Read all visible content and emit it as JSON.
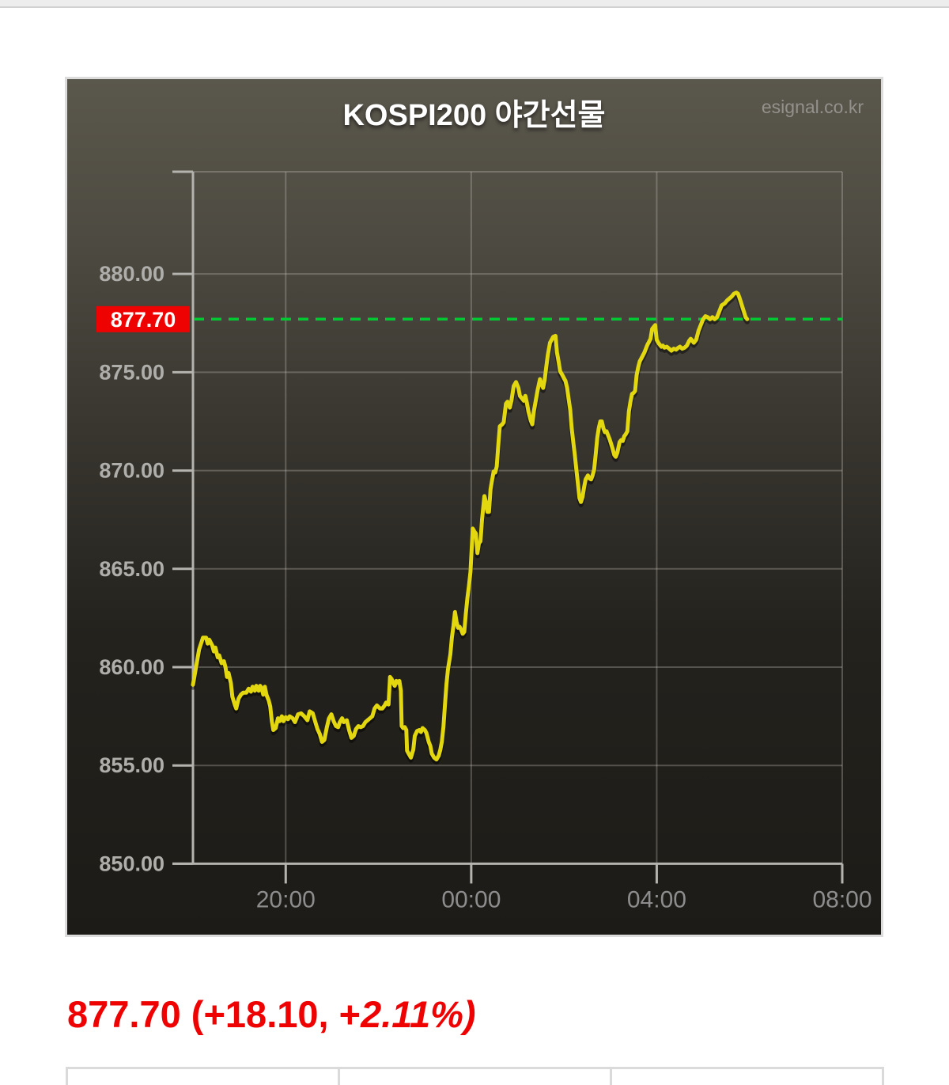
{
  "header": {
    "title": "KOSPI200 야간선물",
    "watermark": "esignal.co.kr"
  },
  "summary": {
    "full_text": "877.70 (+18.10, +2.11%)",
    "text_normal": "877.70 (+18.10, +",
    "text_italic": "2.11%)",
    "price": "877.70",
    "change": "+18.10",
    "change_percent": "+2.11%",
    "color": "#ee0202"
  },
  "chart_data": {
    "type": "line",
    "title": "KOSPI200 야간선물",
    "grid": true,
    "legend": false,
    "x_axis": {
      "unit": "time",
      "start": "18:00",
      "end": "08:00",
      "span_hours": 14,
      "ticks": [
        {
          "hours_from_start": 2,
          "label": "20:00"
        },
        {
          "hours_from_start": 6,
          "label": "00:00"
        },
        {
          "hours_from_start": 10,
          "label": "04:00"
        },
        {
          "hours_from_start": 14,
          "label": "08:00"
        }
      ]
    },
    "y_axis": {
      "min": 850,
      "max": 885.2,
      "ticks": [
        {
          "value": 880,
          "label": "880.00"
        },
        {
          "value": 875,
          "label": "875.00"
        },
        {
          "value": 870,
          "label": "870.00"
        },
        {
          "value": 865,
          "label": "865.00"
        },
        {
          "value": 860,
          "label": "860.00"
        },
        {
          "value": 855,
          "label": "855.00"
        },
        {
          "value": 850,
          "label": "850.00"
        }
      ]
    },
    "reference_line": {
      "value": 877.7,
      "label": "877.70",
      "line_color": "#00ca32",
      "badge_color": "#ee0202",
      "badge_text_color": "#ffffff",
      "style": "dashed"
    },
    "colors": {
      "series": "#e3d70f",
      "grid": "rgba(205,203,196,0.30)",
      "axis": "#b5b3ae",
      "y_label": "#b0aeab",
      "x_label": "#8d8d8d"
    },
    "series": [
      {
        "name": "KOSPI200 야간선물",
        "color": "#e3d70f",
        "points_minutes_value": [
          [
            0,
            859.1
          ],
          [
            4,
            860.0
          ],
          [
            8,
            860.9
          ],
          [
            13,
            861.5
          ],
          [
            17,
            861.5
          ],
          [
            19,
            861.2
          ],
          [
            21,
            861.4
          ],
          [
            25,
            861.1
          ],
          [
            27,
            860.8
          ],
          [
            29,
            861.0
          ],
          [
            32,
            860.5
          ],
          [
            34,
            860.6
          ],
          [
            37,
            860.2
          ],
          [
            40,
            860.3
          ],
          [
            42,
            860.0
          ],
          [
            44,
            859.5
          ],
          [
            46,
            859.7
          ],
          [
            49,
            859.2
          ],
          [
            51,
            858.5
          ],
          [
            54,
            858.1
          ],
          [
            56,
            857.9
          ],
          [
            59,
            858.4
          ],
          [
            62,
            858.6
          ],
          [
            65,
            858.7
          ],
          [
            69,
            858.7
          ],
          [
            72,
            858.9
          ],
          [
            75,
            858.75
          ],
          [
            77,
            859.0
          ],
          [
            80,
            858.8
          ],
          [
            82,
            859.05
          ],
          [
            85,
            858.8
          ],
          [
            87,
            859.05
          ],
          [
            89,
            858.9
          ],
          [
            91,
            858.6
          ],
          [
            93,
            859.0
          ],
          [
            95,
            858.6
          ],
          [
            98,
            858.3
          ],
          [
            100,
            858.0
          ],
          [
            102,
            857.25
          ],
          [
            104,
            856.8
          ],
          [
            107,
            856.9
          ],
          [
            110,
            857.4
          ],
          [
            112,
            857.25
          ],
          [
            115,
            857.5
          ],
          [
            117,
            857.25
          ],
          [
            120,
            857.45
          ],
          [
            123,
            857.35
          ],
          [
            125,
            857.5
          ],
          [
            129,
            857.4
          ],
          [
            132,
            857.2
          ],
          [
            136,
            857.6
          ],
          [
            140,
            857.65
          ],
          [
            144,
            857.5
          ],
          [
            148,
            857.3
          ],
          [
            151,
            857.75
          ],
          [
            155,
            857.65
          ],
          [
            158,
            857.25
          ],
          [
            161,
            856.85
          ],
          [
            164,
            856.6
          ],
          [
            167,
            856.2
          ],
          [
            170,
            856.3
          ],
          [
            173,
            856.9
          ],
          [
            176,
            857.4
          ],
          [
            179,
            857.6
          ],
          [
            182,
            857.25
          ],
          [
            185,
            857.0
          ],
          [
            188,
            856.95
          ],
          [
            190,
            857.2
          ],
          [
            193,
            857.4
          ],
          [
            195,
            857.2
          ],
          [
            199,
            857.3
          ],
          [
            202,
            856.8
          ],
          [
            205,
            856.4
          ],
          [
            208,
            856.5
          ],
          [
            211,
            856.85
          ],
          [
            214,
            857.0
          ],
          [
            217,
            856.95
          ],
          [
            220,
            857.0
          ],
          [
            223,
            857.2
          ],
          [
            226,
            857.3
          ],
          [
            229,
            857.4
          ],
          [
            232,
            857.5
          ],
          [
            235,
            857.9
          ],
          [
            238,
            858.05
          ],
          [
            242,
            857.9
          ],
          [
            245,
            857.9
          ],
          [
            248,
            858.05
          ],
          [
            250,
            858.2
          ],
          [
            253,
            858.1
          ],
          [
            255,
            859.5
          ],
          [
            257,
            859.4
          ],
          [
            259,
            859.2
          ],
          [
            261,
            859.05
          ],
          [
            263,
            859.3
          ],
          [
            265,
            859.2
          ],
          [
            267,
            859.3
          ],
          [
            269,
            858.8
          ],
          [
            270,
            857.0
          ],
          [
            272,
            856.9
          ],
          [
            274,
            856.95
          ],
          [
            276,
            856.8
          ],
          [
            277,
            855.75
          ],
          [
            279,
            855.6
          ],
          [
            282,
            855.4
          ],
          [
            285,
            855.8
          ],
          [
            287,
            856.5
          ],
          [
            290,
            856.75
          ],
          [
            293,
            856.8
          ],
          [
            295,
            856.7
          ],
          [
            297,
            856.9
          ],
          [
            300,
            856.8
          ],
          [
            302,
            856.65
          ],
          [
            305,
            856.2
          ],
          [
            307,
            856.0
          ],
          [
            309,
            855.6
          ],
          [
            312,
            855.4
          ],
          [
            315,
            855.3
          ],
          [
            318,
            855.5
          ],
          [
            320,
            855.8
          ],
          [
            322,
            856.2
          ],
          [
            324,
            856.95
          ],
          [
            326,
            858.05
          ],
          [
            328,
            859.15
          ],
          [
            330,
            859.9
          ],
          [
            333,
            860.65
          ],
          [
            335,
            861.5
          ],
          [
            337,
            862.1
          ],
          [
            339,
            862.8
          ],
          [
            341,
            862.3
          ],
          [
            343,
            862.0
          ],
          [
            345,
            862.05
          ],
          [
            347,
            861.9
          ],
          [
            349,
            861.7
          ],
          [
            351,
            861.8
          ],
          [
            353,
            862.7
          ],
          [
            355,
            863.5
          ],
          [
            357,
            864.1
          ],
          [
            359,
            864.85
          ],
          [
            361,
            866.3
          ],
          [
            362,
            867.05
          ],
          [
            364,
            866.9
          ],
          [
            366,
            866.8
          ],
          [
            368,
            865.8
          ],
          [
            370,
            866.3
          ],
          [
            372,
            866.4
          ],
          [
            374,
            867.5
          ],
          [
            377,
            868.7
          ],
          [
            379,
            868.4
          ],
          [
            381,
            867.9
          ],
          [
            383,
            867.9
          ],
          [
            385,
            869.05
          ],
          [
            387,
            869.5
          ],
          [
            389,
            869.95
          ],
          [
            391,
            869.9
          ],
          [
            393,
            870.2
          ],
          [
            395,
            871.3
          ],
          [
            397,
            872.25
          ],
          [
            400,
            872.35
          ],
          [
            402,
            872.45
          ],
          [
            405,
            873.4
          ],
          [
            407,
            873.5
          ],
          [
            410,
            873.2
          ],
          [
            412,
            873.55
          ],
          [
            415,
            874.3
          ],
          [
            418,
            874.5
          ],
          [
            421,
            874.2
          ],
          [
            423,
            873.8
          ],
          [
            426,
            873.65
          ],
          [
            428,
            873.55
          ],
          [
            430,
            873.8
          ],
          [
            432,
            873.45
          ],
          [
            434,
            873.0
          ],
          [
            437,
            872.55
          ],
          [
            439,
            872.35
          ],
          [
            441,
            873.0
          ],
          [
            443,
            873.45
          ],
          [
            446,
            874.1
          ],
          [
            449,
            874.65
          ],
          [
            451,
            874.4
          ],
          [
            453,
            874.2
          ],
          [
            455,
            874.6
          ],
          [
            457,
            875.25
          ],
          [
            459,
            875.85
          ],
          [
            462,
            876.5
          ],
          [
            466,
            876.8
          ],
          [
            469,
            876.85
          ],
          [
            471,
            876.0
          ],
          [
            473,
            875.55
          ],
          [
            475,
            875.05
          ],
          [
            478,
            874.85
          ],
          [
            480,
            874.7
          ],
          [
            482,
            874.55
          ],
          [
            484,
            874.2
          ],
          [
            486,
            873.65
          ],
          [
            488,
            873.1
          ],
          [
            490,
            872.15
          ],
          [
            492,
            871.45
          ],
          [
            494,
            870.8
          ],
          [
            496,
            870.05
          ],
          [
            498,
            869.35
          ],
          [
            500,
            868.6
          ],
          [
            502,
            868.4
          ],
          [
            504,
            868.65
          ],
          [
            506,
            869.15
          ],
          [
            508,
            869.55
          ],
          [
            511,
            869.75
          ],
          [
            513,
            869.6
          ],
          [
            515,
            869.55
          ],
          [
            517,
            869.75
          ],
          [
            519,
            870.05
          ],
          [
            521,
            870.8
          ],
          [
            523,
            871.65
          ],
          [
            525,
            872.15
          ],
          [
            527,
            872.5
          ],
          [
            529,
            872.5
          ],
          [
            531,
            872.15
          ],
          [
            533,
            871.95
          ],
          [
            535,
            872.0
          ],
          [
            537,
            871.8
          ],
          [
            539,
            871.6
          ],
          [
            541,
            871.35
          ],
          [
            543,
            871.1
          ],
          [
            545,
            870.8
          ],
          [
            547,
            870.7
          ],
          [
            549,
            870.9
          ],
          [
            552,
            871.45
          ],
          [
            554,
            871.55
          ],
          [
            556,
            871.5
          ],
          [
            558,
            871.75
          ],
          [
            560,
            871.85
          ],
          [
            562,
            872.0
          ],
          [
            564,
            873.0
          ],
          [
            566,
            873.5
          ],
          [
            568,
            873.9
          ],
          [
            570,
            873.95
          ],
          [
            572,
            874.05
          ],
          [
            574,
            874.85
          ],
          [
            576,
            875.25
          ],
          [
            578,
            875.55
          ],
          [
            580,
            875.7
          ],
          [
            582,
            875.85
          ],
          [
            584,
            876.0
          ],
          [
            586,
            876.2
          ],
          [
            588,
            876.4
          ],
          [
            590,
            876.55
          ],
          [
            592,
            876.7
          ],
          [
            594,
            877.2
          ],
          [
            598,
            877.4
          ],
          [
            600,
            876.65
          ],
          [
            602,
            876.5
          ],
          [
            604,
            876.4
          ],
          [
            606,
            876.3
          ],
          [
            608,
            876.35
          ],
          [
            610,
            876.25
          ],
          [
            613,
            876.3
          ],
          [
            616,
            876.2
          ],
          [
            619,
            876.1
          ],
          [
            622,
            876.2
          ],
          [
            625,
            876.15
          ],
          [
            628,
            876.25
          ],
          [
            630,
            876.3
          ],
          [
            633,
            876.2
          ],
          [
            636,
            876.25
          ],
          [
            639,
            876.35
          ],
          [
            642,
            876.6
          ],
          [
            644,
            876.7
          ],
          [
            646,
            876.6
          ],
          [
            648,
            876.5
          ],
          [
            651,
            876.65
          ],
          [
            654,
            877.1
          ],
          [
            657,
            877.4
          ],
          [
            660,
            877.7
          ],
          [
            663,
            877.85
          ],
          [
            666,
            877.8
          ],
          [
            669,
            877.7
          ],
          [
            672,
            877.8
          ],
          [
            675,
            877.7
          ],
          [
            678,
            877.8
          ],
          [
            681,
            878.1
          ],
          [
            684,
            878.4
          ],
          [
            688,
            878.5
          ],
          [
            691,
            878.65
          ],
          [
            694,
            878.75
          ],
          [
            697,
            878.85
          ],
          [
            700,
            879.0
          ],
          [
            703,
            879.05
          ],
          [
            705,
            879.0
          ],
          [
            707,
            878.8
          ],
          [
            709,
            878.55
          ],
          [
            711,
            878.3
          ],
          [
            713,
            878.05
          ],
          [
            715,
            877.8
          ],
          [
            717,
            877.7
          ]
        ]
      }
    ]
  }
}
